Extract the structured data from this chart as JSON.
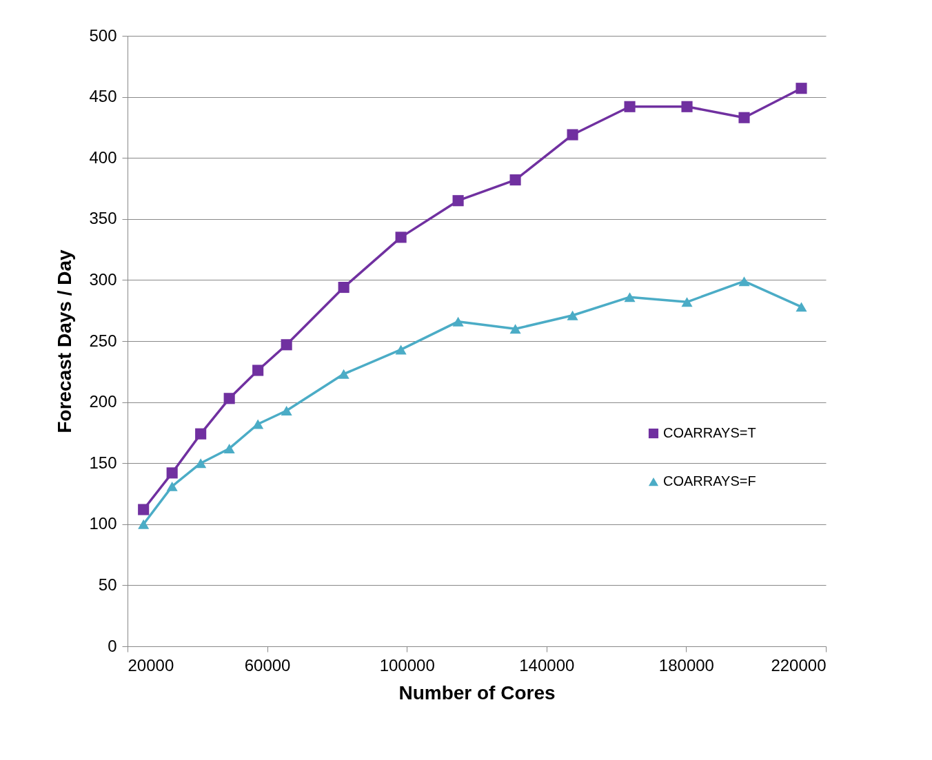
{
  "chart_data": {
    "type": "line",
    "xlabel": "Number of Cores",
    "ylabel": "Forecast Days / Day",
    "x": [
      24576,
      32768,
      40960,
      49152,
      57344,
      65536,
      81920,
      98304,
      114688,
      131072,
      147456,
      163840,
      180224,
      196608,
      212992
    ],
    "series": [
      {
        "name": "COARRAYS=T",
        "color": "#7030a0",
        "marker": "square",
        "values": [
          112,
          142,
          174,
          203,
          226,
          247,
          294,
          335,
          365,
          382,
          419,
          442,
          442,
          433,
          457
        ]
      },
      {
        "name": "COARRAYS=F",
        "color": "#4bacc6",
        "marker": "triangle",
        "values": [
          100,
          131,
          150,
          162,
          182,
          193,
          223,
          243,
          266,
          260,
          271,
          286,
          282,
          299,
          278
        ]
      }
    ],
    "xlim": [
      20000,
      220000
    ],
    "xticks": [
      20000,
      60000,
      100000,
      140000,
      180000,
      220000
    ],
    "ylim": [
      0,
      500
    ],
    "yticks": [
      0,
      50,
      100,
      150,
      200,
      250,
      300,
      350,
      400,
      450,
      500
    ],
    "grid": "y",
    "legend": "right",
    "line_style": "solid"
  }
}
